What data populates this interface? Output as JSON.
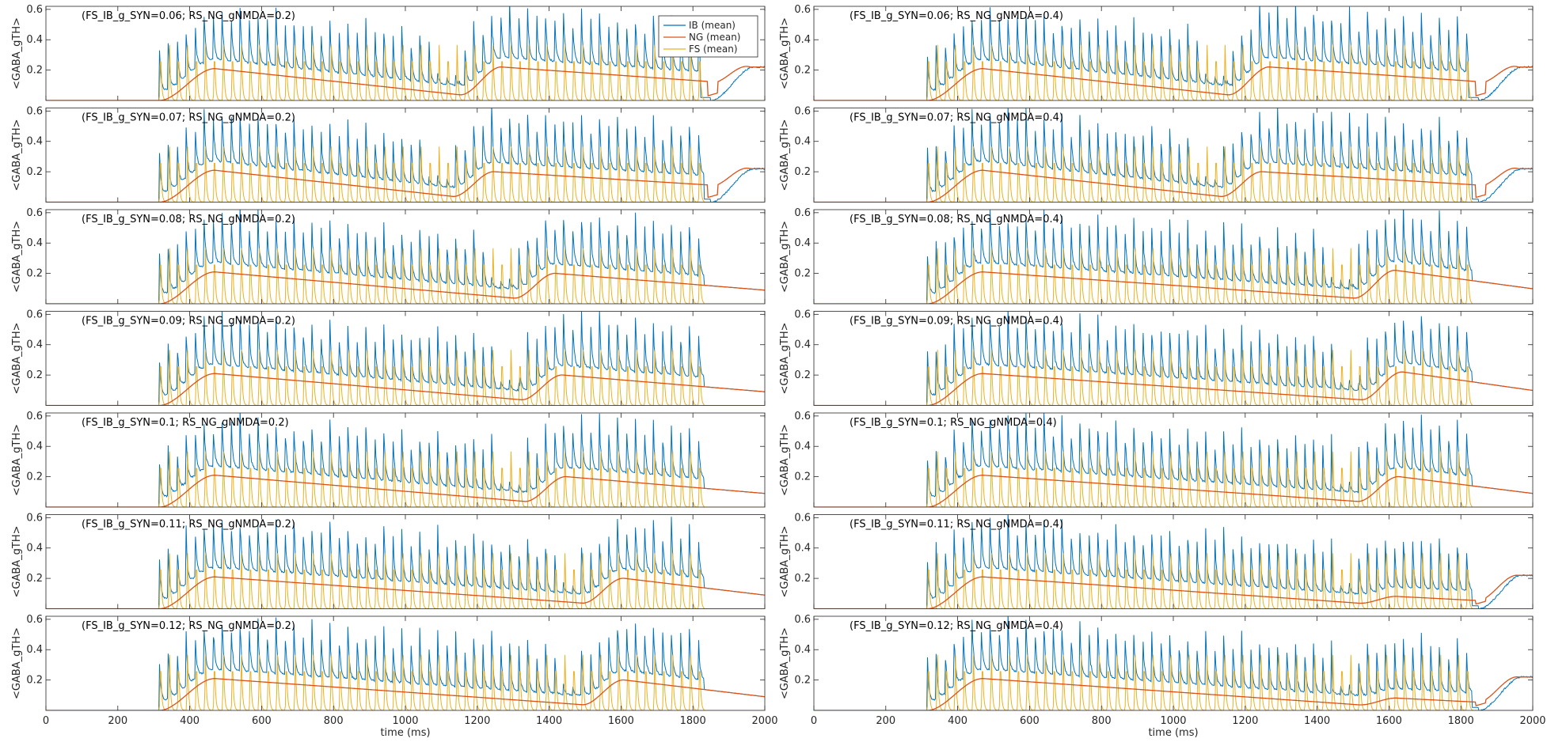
{
  "chart_data": {
    "type": "line",
    "layout": {
      "rows": 7,
      "cols": 2
    },
    "xlabel": "time (ms)",
    "ylabel": "<GABA_gTH>",
    "xlim": [
      0,
      2000
    ],
    "ylim": [
      0,
      0.62
    ],
    "xticks": [
      0,
      200,
      400,
      600,
      800,
      1000,
      1200,
      1400,
      1600,
      1800,
      2000
    ],
    "yticks": [
      0.2,
      0.4,
      0.6
    ],
    "legend": {
      "placement": "top-right of first panel",
      "entries": [
        {
          "name": "IB (mean)",
          "color": "#0072BD"
        },
        {
          "name": "NG (mean)",
          "color": "#D95319"
        },
        {
          "name": "FS (mean)",
          "color": "#EDB120"
        }
      ]
    },
    "series_colors": {
      "IB": "#0072BD",
      "NG": "#D95319",
      "FS": "#EDB120"
    },
    "panels": [
      {
        "title": "(FS_IB_g_SYN=0.06; RS_NG_gNMDA=0.2)",
        "ib_gap_end": 1150,
        "second_ng_start": 1150,
        "ng_peak2": 0.22,
        "ib_end": 1820,
        "tail_ng_rise": true,
        "fs_end": 1830
      },
      {
        "title": "(FS_IB_g_SYN=0.06; RS_NG_gNMDA=0.4)",
        "ib_gap_end": 1150,
        "second_ng_start": 1150,
        "ng_peak2": 0.22,
        "ib_end": 1820,
        "tail_ng_rise": true,
        "fs_end": 1830
      },
      {
        "title": "(FS_IB_g_SYN=0.07; RS_NG_gNMDA=0.2)",
        "ib_gap_end": 1130,
        "second_ng_start": 1130,
        "ng_peak2": 0.2,
        "ib_end": 1830,
        "tail_ng_rise": true,
        "fs_end": 1830
      },
      {
        "title": "(FS_IB_g_SYN=0.07; RS_NG_gNMDA=0.4)",
        "ib_gap_end": 1130,
        "second_ng_start": 1130,
        "ng_peak2": 0.2,
        "ib_end": 1830,
        "tail_ng_rise": true,
        "fs_end": 1830
      },
      {
        "title": "(FS_IB_g_SYN=0.08; RS_NG_gNMDA=0.2)",
        "ib_gap_end": 1300,
        "second_ng_start": 1300,
        "ng_peak2": 0.2,
        "ib_end": 1830,
        "tail_ng_rise": false,
        "fs_end": 1830
      },
      {
        "title": "(FS_IB_g_SYN=0.08; RS_NG_gNMDA=0.4)",
        "ib_gap_end": 1500,
        "second_ng_start": 1500,
        "ng_peak2": 0.22,
        "ib_end": 1830,
        "tail_ng_rise": false,
        "fs_end": 1830
      },
      {
        "title": "(FS_IB_g_SYN=0.09; RS_NG_gNMDA=0.2)",
        "ib_gap_end": 1320,
        "second_ng_start": 1320,
        "ng_peak2": 0.2,
        "ib_end": 1830,
        "tail_ng_rise": false,
        "fs_end": 1830
      },
      {
        "title": "(FS_IB_g_SYN=0.09; RS_NG_gNMDA=0.4)",
        "ib_gap_end": 1520,
        "second_ng_start": 1520,
        "ng_peak2": 0.22,
        "ib_end": 1830,
        "tail_ng_rise": false,
        "fs_end": 1830
      },
      {
        "title": "(FS_IB_g_SYN=0.1; RS_NG_gNMDA=0.2)",
        "ib_gap_end": 1330,
        "second_ng_start": 1330,
        "ng_peak2": 0.2,
        "ib_end": 1830,
        "tail_ng_rise": false,
        "fs_end": 1830
      },
      {
        "title": "(FS_IB_g_SYN=0.1; RS_NG_gNMDA=0.4)",
        "ib_gap_end": 1510,
        "second_ng_start": 1510,
        "ng_peak2": 0.2,
        "ib_end": 1830,
        "tail_ng_rise": false,
        "fs_end": 1830
      },
      {
        "title": "(FS_IB_g_SYN=0.11; RS_NG_gNMDA=0.2)",
        "ib_gap_end": 1490,
        "second_ng_start": 1490,
        "ng_peak2": 0.2,
        "ib_end": 1830,
        "tail_ng_rise": false,
        "fs_end": 1830
      },
      {
        "title": "(FS_IB_g_SYN=0.11; RS_NG_gNMDA=0.4)",
        "ib_gap_end": 1510,
        "second_ng_start": 1510,
        "ng_peak2": 0.08,
        "ib_end": 1830,
        "tail_ng_rise": true,
        "fs_end": 1830
      },
      {
        "title": "(FS_IB_g_SYN=0.12; RS_NG_gNMDA=0.2)",
        "ib_gap_end": 1490,
        "second_ng_start": 1490,
        "ng_peak2": 0.2,
        "ib_end": 1830,
        "tail_ng_rise": false,
        "fs_end": 1830
      },
      {
        "title": "(FS_IB_g_SYN=0.12; RS_NG_gNMDA=0.4)",
        "ib_gap_end": 1510,
        "second_ng_start": 1510,
        "ng_peak2": 0.08,
        "ib_end": 1830,
        "tail_ng_rise": true,
        "fs_end": 1830
      }
    ],
    "shared": {
      "onset_ms": 315,
      "fs_period_ms": 25,
      "fs_peak": 0.4,
      "ib_peak_range": [
        0.34,
        0.48
      ],
      "ng_peak1": 0.21,
      "ng_peak1_time": 470
    }
  }
}
